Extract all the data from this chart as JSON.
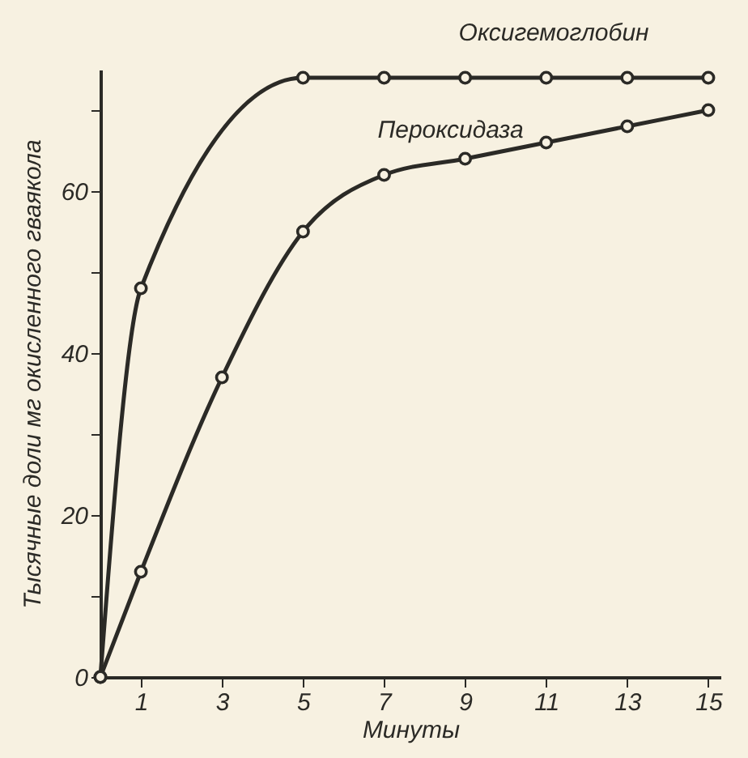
{
  "chart_data": {
    "type": "line",
    "xlabel": "Минуты",
    "ylabel": "Тысячные доли мг окисленного гваякола",
    "x": [
      0,
      1,
      3,
      5,
      7,
      9,
      11,
      13,
      15
    ],
    "series": [
      {
        "name": "Оксигемоглобин",
        "color": "#2b2a26",
        "x": [
          0,
          1,
          5,
          7,
          9,
          11,
          13,
          15
        ],
        "values": [
          0,
          48,
          74,
          74,
          74,
          74,
          74,
          74
        ]
      },
      {
        "name": "Пероксидаза",
        "color": "#2b2a26",
        "values": [
          0,
          13,
          37,
          55,
          62,
          64,
          66,
          68,
          70
        ]
      }
    ],
    "xlim": [
      0,
      15.3
    ],
    "xticks": [
      1,
      3,
      5,
      7,
      9,
      11,
      13,
      15
    ],
    "ylim": [
      0,
      75
    ],
    "yticks": [
      0,
      {
        "value": 10,
        "label": null
      },
      20,
      {
        "value": 30,
        "label": null
      },
      40,
      {
        "value": 50,
        "label": null
      },
      60,
      {
        "value": 70,
        "label": null
      }
    ],
    "marker": "circle",
    "line_style": "solid",
    "grid": false,
    "legend": false
  }
}
